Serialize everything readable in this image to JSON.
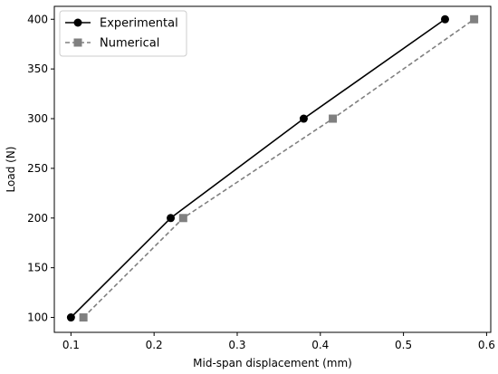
{
  "chart_data": {
    "type": "line",
    "title": "",
    "xlabel": "Mid-span displacement (mm)",
    "ylabel": "Load (N)",
    "xlim": [
      0.08,
      0.605
    ],
    "ylim": [
      85,
      413
    ],
    "xticks": [
      0.1,
      0.2,
      0.3,
      0.4,
      0.5,
      0.6
    ],
    "xtick_labels": [
      "0.1",
      "0.2",
      "0.3",
      "0.4",
      "0.5",
      "0.6"
    ],
    "yticks": [
      100,
      150,
      200,
      250,
      300,
      350,
      400
    ],
    "ytick_labels": [
      "100",
      "150",
      "200",
      "250",
      "300",
      "350",
      "400"
    ],
    "grid": false,
    "legend": "top-left",
    "series": [
      {
        "name": "Experimental",
        "x": [
          0.1,
          0.22,
          0.38,
          0.55
        ],
        "y": [
          100,
          200,
          300,
          400
        ],
        "color": "#000000",
        "linestyle": "solid",
        "marker": "circle"
      },
      {
        "name": "Numerical",
        "x": [
          0.115,
          0.235,
          0.415,
          0.585
        ],
        "y": [
          100,
          200,
          300,
          400
        ],
        "color": "#808080",
        "linestyle": "dashed",
        "marker": "square"
      }
    ]
  }
}
